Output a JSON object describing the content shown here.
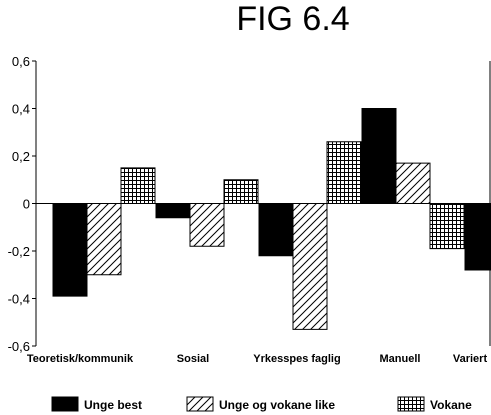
{
  "chart_data": {
    "type": "bar",
    "title": "FIG 6.4",
    "categories": [
      "Teoretisk/kommunik",
      "Sosial",
      "Yrkesspes faglig",
      "Manuell",
      "Variert"
    ],
    "series": [
      {
        "name": "Unge best",
        "pattern": "solid",
        "values": [
          -0.39,
          -0.06,
          -0.22,
          0.4,
          -0.28
        ]
      },
      {
        "name": "Unge og vokane like",
        "pattern": "diagonal",
        "values": [
          -0.3,
          -0.18,
          -0.53,
          0.17,
          null
        ]
      },
      {
        "name": "Vokane",
        "pattern": "grid",
        "values": [
          0.15,
          0.1,
          0.26,
          -0.19,
          null
        ]
      }
    ],
    "ylim": [
      -0.6,
      0.6
    ],
    "yticks": [
      0.6,
      0.4,
      0.2,
      0,
      -0.2,
      -0.4,
      -0.6
    ],
    "ytick_labels": [
      "0,6",
      "0,4",
      "0,2",
      "0",
      "-0,2",
      "-0,4",
      "-0,6"
    ],
    "legend_position": "bottom",
    "grid": false,
    "colors": {
      "solid": "#000000",
      "background": "#ffffff"
    }
  }
}
